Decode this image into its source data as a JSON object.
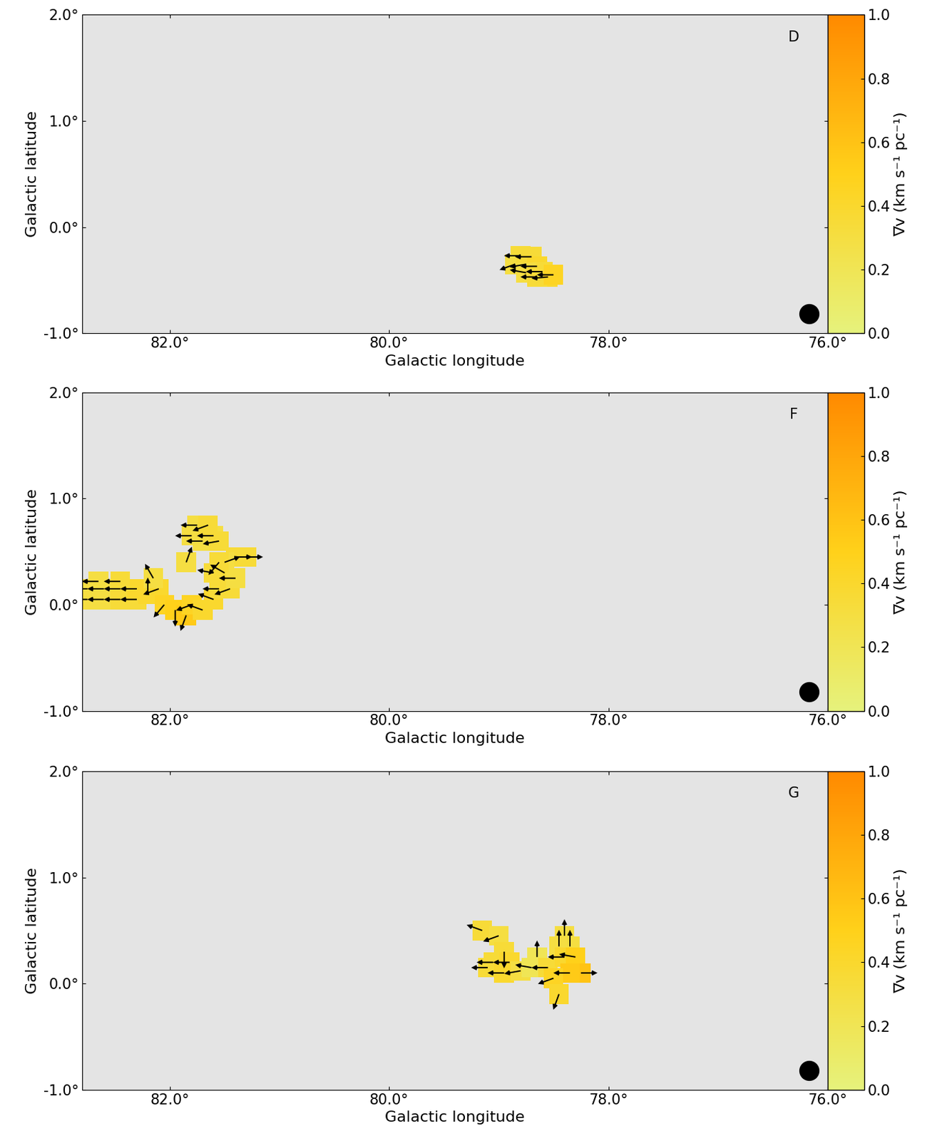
{
  "chart_data": [
    {
      "type": "vector",
      "title": "D",
      "xlabel": "Galactic longitude",
      "ylabel": "Galactic latitude",
      "xlim": [
        82.8,
        76.0
      ],
      "ylim": [
        -1.0,
        2.0
      ],
      "xticks": [
        {
          "value": 82,
          "label": "82.0°"
        },
        {
          "value": 80,
          "label": "80.0°"
        },
        {
          "value": 78,
          "label": "78.0°"
        },
        {
          "value": 76,
          "label": "76.0°"
        }
      ],
      "yticks": [
        {
          "value": -1,
          "label": "-1.0°"
        },
        {
          "value": 0,
          "label": "0.0°"
        },
        {
          "value": 1,
          "label": "1.0°"
        },
        {
          "value": 2,
          "label": "2.0°"
        }
      ],
      "colorbar_label": "∇v (km s⁻¹ pc⁻¹)",
      "colorbar_lim": [
        0,
        1
      ],
      "colorbar_ticks": [
        {
          "value": 0,
          "label": "0.0"
        },
        {
          "value": 0.2,
          "label": "0.2"
        },
        {
          "value": 0.4,
          "label": "0.4"
        },
        {
          "value": 0.6,
          "label": "0.6"
        },
        {
          "value": 0.8,
          "label": "0.8"
        },
        {
          "value": 1,
          "label": "1.0"
        }
      ],
      "vectors": {
        "l": [
          78.8,
          78.7,
          78.85,
          78.75,
          78.65,
          78.6,
          78.75,
          78.55,
          78.65,
          78.5
        ],
        "b": [
          -0.27,
          -0.28,
          -0.35,
          -0.35,
          -0.37,
          -0.42,
          -0.43,
          -0.47,
          -0.47,
          -0.45
        ],
        "angle": [
          180,
          180,
          200,
          190,
          180,
          180,
          170,
          185,
          180,
          180
        ],
        "grad": [
          0.35,
          0.35,
          0.3,
          0.35,
          0.4,
          0.35,
          0.3,
          0.4,
          0.35,
          0.45
        ]
      }
    },
    {
      "type": "vector",
      "title": "F",
      "xlabel": "Galactic longitude",
      "ylabel": "Galactic latitude",
      "xlim": [
        82.8,
        76.0
      ],
      "ylim": [
        -1.0,
        2.0
      ],
      "xticks": [
        {
          "value": 82,
          "label": "82.0°"
        },
        {
          "value": 80,
          "label": "80.0°"
        },
        {
          "value": 78,
          "label": "78.0°"
        },
        {
          "value": 76,
          "label": "76.0°"
        }
      ],
      "yticks": [
        {
          "value": -1,
          "label": "-1.0°"
        },
        {
          "value": 0,
          "label": "0.0°"
        },
        {
          "value": 1,
          "label": "1.0°"
        },
        {
          "value": 2,
          "label": "2.0°"
        }
      ],
      "colorbar_label": "∇v (km s⁻¹ pc⁻¹)",
      "colorbar_lim": [
        0,
        1
      ],
      "colorbar_ticks": [
        {
          "value": 0,
          "label": "0.0"
        },
        {
          "value": 0.2,
          "label": "0.2"
        },
        {
          "value": 0.4,
          "label": "0.4"
        },
        {
          "value": 0.6,
          "label": "0.6"
        },
        {
          "value": 0.8,
          "label": "0.8"
        },
        {
          "value": 1,
          "label": "1.0"
        }
      ],
      "vectors": {
        "l": [
          82.75,
          82.6,
          82.45,
          82.3,
          82.75,
          82.6,
          82.45,
          82.3,
          82.65,
          82.45,
          82.2,
          82.1,
          82.15,
          82.05,
          81.95,
          81.85,
          81.8,
          81.7,
          81.6,
          81.55,
          81.45,
          81.5,
          81.4,
          81.6,
          81.4,
          81.3,
          81.5,
          81.7,
          81.6,
          81.8,
          81.75,
          81.65,
          81.55,
          81.85,
          81.55
        ],
        "b": [
          0.05,
          0.05,
          0.05,
          0.05,
          0.15,
          0.15,
          0.15,
          0.15,
          0.22,
          0.22,
          0.1,
          0.15,
          0.25,
          0.0,
          -0.05,
          -0.1,
          0.0,
          -0.05,
          0.05,
          0.15,
          0.15,
          0.3,
          0.25,
          0.3,
          0.45,
          0.45,
          0.4,
          0.6,
          0.65,
          0.65,
          0.75,
          0.75,
          0.6,
          0.4,
          0.4
        ],
        "angle": [
          180,
          180,
          180,
          180,
          180,
          180,
          180,
          180,
          180,
          180,
          90,
          200,
          120,
          230,
          270,
          250,
          200,
          160,
          160,
          180,
          200,
          150,
          180,
          170,
          0,
          0,
          20,
          180,
          180,
          180,
          180,
          200,
          190,
          70,
          230
        ],
        "grad": [
          0.3,
          0.3,
          0.35,
          0.35,
          0.3,
          0.3,
          0.35,
          0.4,
          0.3,
          0.35,
          0.4,
          0.4,
          0.3,
          0.45,
          0.5,
          0.55,
          0.45,
          0.4,
          0.4,
          0.35,
          0.35,
          0.35,
          0.3,
          0.35,
          0.35,
          0.35,
          0.3,
          0.3,
          0.3,
          0.3,
          0.3,
          0.35,
          0.35,
          0.3,
          0.35
        ]
      }
    },
    {
      "type": "vector",
      "title": "G",
      "xlabel": "Galactic longitude",
      "ylabel": "Galactic latitude",
      "xlim": [
        82.8,
        76.0
      ],
      "ylim": [
        -1.0,
        2.0
      ],
      "xticks": [
        {
          "value": 82,
          "label": "82.0°"
        },
        {
          "value": 80,
          "label": "80.0°"
        },
        {
          "value": 78,
          "label": "78.0°"
        },
        {
          "value": 76,
          "label": "76.0°"
        }
      ],
      "yticks": [
        {
          "value": -1,
          "label": "-1.0°"
        },
        {
          "value": 0,
          "label": "0.0°"
        },
        {
          "value": 1,
          "label": "1.0°"
        },
        {
          "value": 2,
          "label": "2.0°"
        }
      ],
      "colorbar_label": "∇v (km s⁻¹ pc⁻¹)",
      "colorbar_lim": [
        0,
        1
      ],
      "colorbar_ticks": [
        {
          "value": 0,
          "label": "0.0"
        },
        {
          "value": 0.2,
          "label": "0.2"
        },
        {
          "value": 0.4,
          "label": "0.4"
        },
        {
          "value": 0.6,
          "label": "0.6"
        },
        {
          "value": 0.8,
          "label": "0.8"
        },
        {
          "value": 1,
          "label": "1.0"
        }
      ],
      "vectors": {
        "l": [
          79.15,
          79.0,
          78.95,
          79.05,
          78.9,
          79.1,
          78.95,
          78.8,
          78.7,
          78.65,
          78.55,
          78.45,
          78.35,
          78.4,
          78.3,
          78.25,
          78.35,
          78.5,
          78.45,
          78.4
        ],
        "b": [
          0.5,
          0.45,
          0.3,
          0.2,
          0.2,
          0.15,
          0.1,
          0.12,
          0.15,
          0.25,
          0.15,
          0.35,
          0.35,
          0.25,
          0.25,
          0.1,
          0.1,
          0.05,
          -0.1,
          0.45
        ],
        "angle": [
          160,
          200,
          270,
          180,
          180,
          180,
          180,
          190,
          170,
          90,
          180,
          90,
          90,
          180,
          170,
          0,
          180,
          200,
          250,
          90
        ],
        "grad": [
          0.35,
          0.3,
          0.35,
          0.35,
          0.4,
          0.35,
          0.4,
          0.3,
          0.2,
          0.2,
          0.35,
          0.3,
          0.3,
          0.4,
          0.5,
          0.6,
          0.55,
          0.45,
          0.4,
          0.3
        ]
      }
    }
  ]
}
